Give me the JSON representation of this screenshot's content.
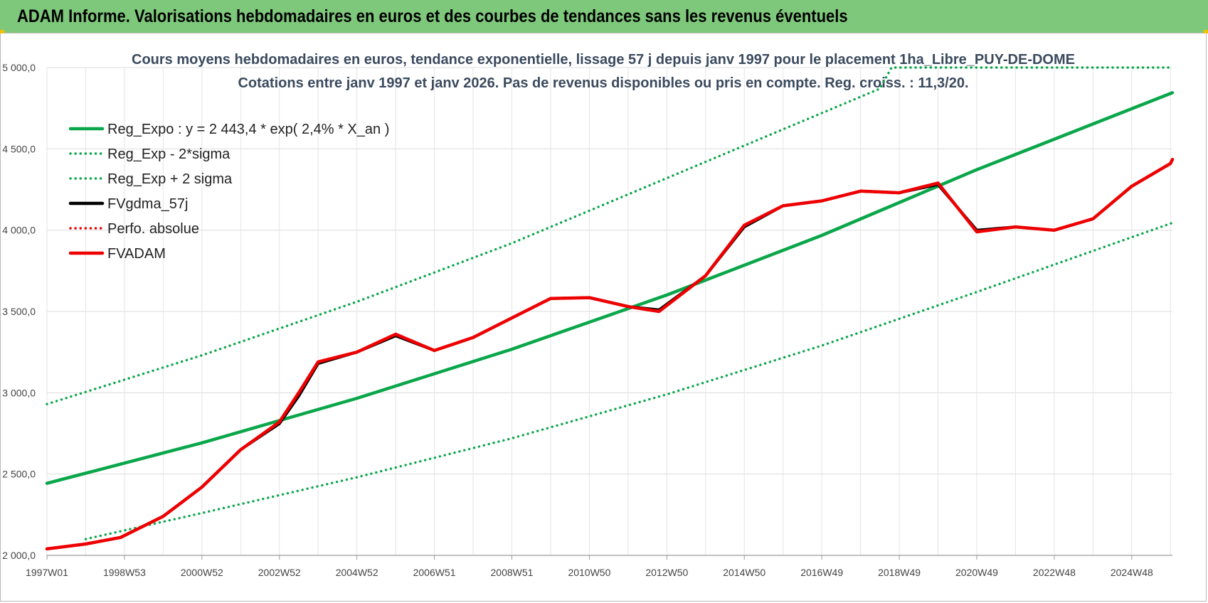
{
  "banner": {
    "title": "ADAM Informe. Valorisations hebdomadaires en euros et des courbes de tendances sans les revenus éventuels"
  },
  "colors": {
    "banner_bg": "#7ec87b",
    "green": "#0aa64a",
    "red": "#ee0000",
    "black": "#000000"
  },
  "chart_data": {
    "type": "line",
    "title": "Cours moyens hebdomadaires en euros, tendance exponentielle, lissage 57 j depuis janv 1997 pour le placement 1ha_Libre_PUY-DE-DOME",
    "subtitle": "Cotations entre janv 1997 et janv 2026. Pas de revenus disponibles ou pris en compte. Reg. croiss. : 11,3/20.",
    "xlim": [
      1997.0,
      2026.05
    ],
    "ylim": [
      2000,
      5000
    ],
    "y_ticks": [
      {
        "v": 2000,
        "label": "2 000,0"
      },
      {
        "v": 2500,
        "label": "2 500,0"
      },
      {
        "v": 3000,
        "label": "3 000,0"
      },
      {
        "v": 3500,
        "label": "3 500,0"
      },
      {
        "v": 4000,
        "label": "4 000,0"
      },
      {
        "v": 4500,
        "label": "4 500,0"
      },
      {
        "v": 5000,
        "label": "5 000,0"
      }
    ],
    "x_ticks": [
      {
        "t": 1997.0,
        "label": "1997W01"
      },
      {
        "t": 1999.0,
        "label": "1998W53"
      },
      {
        "t": 2001.0,
        "label": "2000W52"
      },
      {
        "t": 2003.0,
        "label": "2002W52"
      },
      {
        "t": 2005.0,
        "label": "2004W52"
      },
      {
        "t": 2007.0,
        "label": "2006W51"
      },
      {
        "t": 2009.0,
        "label": "2008W51"
      },
      {
        "t": 2011.0,
        "label": "2010W50"
      },
      {
        "t": 2013.0,
        "label": "2012W50"
      },
      {
        "t": 2015.0,
        "label": "2014W50"
      },
      {
        "t": 2017.0,
        "label": "2016W49"
      },
      {
        "t": 2019.0,
        "label": "2018W49"
      },
      {
        "t": 2021.0,
        "label": "2020W49"
      },
      {
        "t": 2023.0,
        "label": "2022W48"
      },
      {
        "t": 2025.0,
        "label": "2024W48"
      }
    ],
    "grid": true,
    "legend_position": "top-left",
    "series": [
      {
        "name": "Reg_Expo : y = 2 443,4 * exp( 2,4% *  X_an )",
        "style": "solid",
        "color": "#0aa64a",
        "points": [
          [
            1997.0,
            2443
          ],
          [
            2001.0,
            2692
          ],
          [
            2005.0,
            2966
          ],
          [
            2009.0,
            3268
          ],
          [
            2013.0,
            3601
          ],
          [
            2017.0,
            3968
          ],
          [
            2021.0,
            4372
          ],
          [
            2026.05,
            4845
          ]
        ]
      },
      {
        "name": "Reg_Exp - 2*sigma",
        "style": "dotted",
        "color": "#0aa64a",
        "points": [
          [
            1998.0,
            2100
          ],
          [
            2001.0,
            2260
          ],
          [
            2005.0,
            2480
          ],
          [
            2009.0,
            2720
          ],
          [
            2013.0,
            2990
          ],
          [
            2017.0,
            3290
          ],
          [
            2021.0,
            3620
          ],
          [
            2026.05,
            4045
          ]
        ]
      },
      {
        "name": "Reg_Exp + 2 sigma",
        "style": "dotted",
        "color": "#0aa64a",
        "points": [
          [
            1997.0,
            2930
          ],
          [
            2001.0,
            3230
          ],
          [
            2005.0,
            3560
          ],
          [
            2009.0,
            3920
          ],
          [
            2013.0,
            4320
          ],
          [
            2018.5,
            4870
          ],
          [
            2018.8,
            5000
          ],
          [
            2026.05,
            5000
          ]
        ]
      },
      {
        "name": "FVgdma_57j",
        "style": "solid",
        "color": "#000000",
        "points": [
          [
            1997.0,
            2040
          ],
          [
            1998.0,
            2070
          ],
          [
            1998.9,
            2110
          ],
          [
            2000.0,
            2240
          ],
          [
            2001.0,
            2420
          ],
          [
            2002.0,
            2650
          ],
          [
            2003.0,
            2810
          ],
          [
            2003.5,
            2980
          ],
          [
            2004.0,
            3180
          ],
          [
            2005.0,
            3250
          ],
          [
            2006.0,
            3350
          ],
          [
            2007.0,
            3260
          ],
          [
            2008.0,
            3340
          ],
          [
            2009.0,
            3460
          ],
          [
            2010.0,
            3580
          ],
          [
            2011.0,
            3585
          ],
          [
            2012.0,
            3530
          ],
          [
            2012.8,
            3510
          ],
          [
            2014.0,
            3720
          ],
          [
            2015.0,
            4020
          ],
          [
            2016.0,
            4150
          ],
          [
            2017.0,
            4180
          ],
          [
            2018.0,
            4240
          ],
          [
            2019.0,
            4230
          ],
          [
            2020.0,
            4280
          ],
          [
            2021.0,
            4000
          ],
          [
            2022.0,
            4020
          ],
          [
            2023.0,
            4000
          ],
          [
            2024.0,
            4070
          ],
          [
            2025.0,
            4270
          ],
          [
            2026.0,
            4410
          ],
          [
            2026.05,
            4435
          ]
        ]
      },
      {
        "name": "Perfo. absolue",
        "style": "dotted",
        "color": "#ee0000",
        "points": []
      },
      {
        "name": "FVADAM",
        "style": "solid",
        "color": "#ee0000",
        "points": [
          [
            1997.0,
            2040
          ],
          [
            1998.0,
            2070
          ],
          [
            1998.9,
            2110
          ],
          [
            2000.0,
            2240
          ],
          [
            2001.0,
            2420
          ],
          [
            2002.0,
            2650
          ],
          [
            2003.0,
            2820
          ],
          [
            2003.5,
            3000
          ],
          [
            2004.0,
            3190
          ],
          [
            2005.0,
            3250
          ],
          [
            2006.0,
            3360
          ],
          [
            2007.0,
            3260
          ],
          [
            2008.0,
            3340
          ],
          [
            2009.0,
            3460
          ],
          [
            2010.0,
            3580
          ],
          [
            2011.0,
            3585
          ],
          [
            2012.0,
            3530
          ],
          [
            2012.8,
            3500
          ],
          [
            2014.0,
            3720
          ],
          [
            2015.0,
            4030
          ],
          [
            2016.0,
            4150
          ],
          [
            2017.0,
            4180
          ],
          [
            2018.0,
            4240
          ],
          [
            2019.0,
            4230
          ],
          [
            2020.0,
            4290
          ],
          [
            2021.0,
            3990
          ],
          [
            2022.0,
            4020
          ],
          [
            2023.0,
            4000
          ],
          [
            2024.0,
            4070
          ],
          [
            2025.0,
            4270
          ],
          [
            2026.0,
            4410
          ],
          [
            2026.05,
            4435
          ]
        ]
      }
    ]
  }
}
